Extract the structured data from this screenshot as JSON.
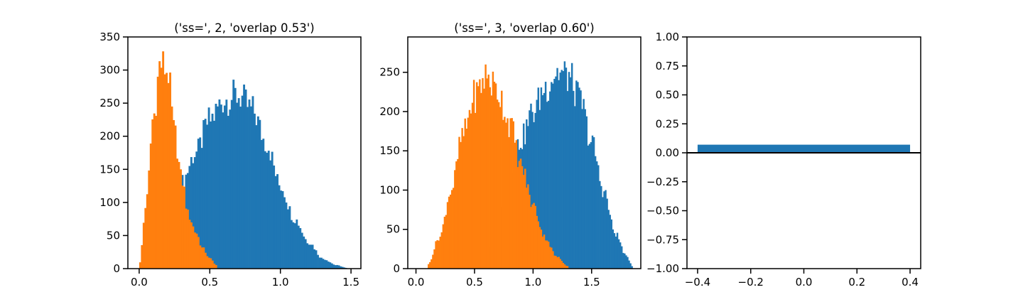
{
  "chart_data": [
    {
      "type": "bar",
      "subtype": "histogram",
      "title": "('ss=', 2, 'overlap 0.53')",
      "xlim": [
        -0.08,
        1.57
      ],
      "ylim": [
        0,
        350
      ],
      "xticks": [
        0.0,
        0.5,
        1.0,
        1.5
      ],
      "xtick_labels": [
        "0.0",
        "0.5",
        "1.0",
        "1.5"
      ],
      "yticks": [
        0,
        50,
        100,
        150,
        200,
        250,
        300,
        350
      ],
      "ytick_labels": [
        "0",
        "50",
        "100",
        "150",
        "200",
        "250",
        "300",
        "350"
      ],
      "series": [
        {
          "color": "#1f77b4",
          "x": [
            0.3,
            0.4,
            0.5,
            0.6,
            0.7,
            0.8,
            0.9,
            1.0,
            1.1,
            1.2,
            1.3,
            1.4,
            1.47
          ],
          "y": [
            130,
            175,
            225,
            255,
            262,
            240,
            190,
            125,
            75,
            40,
            15,
            5,
            1
          ]
        },
        {
          "color": "#ff7f0e",
          "x": [
            0.0,
            0.05,
            0.1,
            0.15,
            0.2,
            0.25,
            0.3,
            0.35,
            0.4,
            0.45,
            0.5,
            0.55
          ],
          "y": [
            5,
            100,
            230,
            310,
            300,
            205,
            135,
            80,
            55,
            30,
            15,
            5
          ]
        }
      ]
    },
    {
      "type": "bar",
      "subtype": "histogram",
      "title": "('ss=', 3, 'overlap 0.60')",
      "xlim": [
        -0.07,
        1.92
      ],
      "ylim": [
        0,
        295
      ],
      "xticks": [
        0.0,
        0.5,
        1.0,
        1.5
      ],
      "xtick_labels": [
        "0.0",
        "0.5",
        "1.0",
        "1.5"
      ],
      "yticks": [
        0,
        50,
        100,
        150,
        200,
        250
      ],
      "ytick_labels": [
        "0",
        "50",
        "100",
        "150",
        "200",
        "250"
      ],
      "series": [
        {
          "color": "#1f77b4",
          "x": [
            0.6,
            0.7,
            0.8,
            0.9,
            1.0,
            1.1,
            1.2,
            1.3,
            1.4,
            1.5,
            1.6,
            1.7,
            1.8,
            1.85
          ],
          "y": [
            15,
            60,
            125,
            165,
            200,
            230,
            250,
            245,
            215,
            160,
            100,
            45,
            15,
            3
          ]
        },
        {
          "color": "#ff7f0e",
          "x": [
            0.1,
            0.2,
            0.3,
            0.4,
            0.5,
            0.6,
            0.7,
            0.8,
            0.9,
            1.0,
            1.1,
            1.2,
            1.3
          ],
          "y": [
            5,
            40,
            100,
            170,
            220,
            245,
            225,
            185,
            130,
            80,
            40,
            15,
            3
          ]
        }
      ]
    },
    {
      "type": "bar",
      "xlim": [
        -0.44,
        0.44
      ],
      "ylim": [
        -1.0,
        1.0
      ],
      "xticks": [
        -0.4,
        -0.2,
        0.0,
        0.2,
        0.4
      ],
      "xtick_labels": [
        "−0.4",
        "−0.2",
        "0.0",
        "0.2",
        "0.4"
      ],
      "yticks": [
        -1.0,
        -0.75,
        -0.5,
        -0.25,
        0.0,
        0.25,
        0.5,
        0.75,
        1.0
      ],
      "ytick_labels": [
        "−1.00",
        "−0.75",
        "−0.50",
        "−0.25",
        "0.00",
        "0.25",
        "0.50",
        "0.75",
        "1.00"
      ],
      "bars": [
        {
          "x": 0.0,
          "width": 0.8,
          "value": 0.07,
          "color": "#1f77b4"
        }
      ],
      "hline": {
        "y": 0.0,
        "color": "#000000"
      }
    }
  ]
}
